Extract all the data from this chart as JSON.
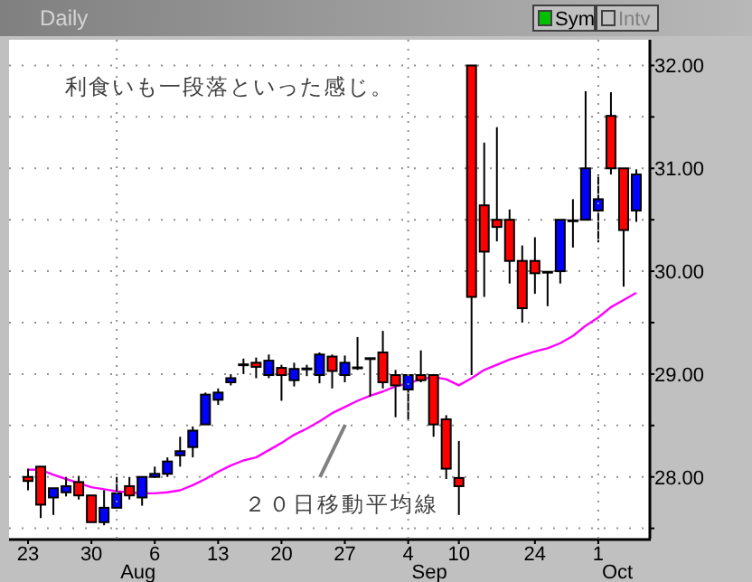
{
  "chart_data": {
    "type": "candlestick",
    "title": "Daily",
    "categories": [
      "23",
      null,
      null,
      null,
      null,
      "30",
      null,
      null,
      null,
      null,
      "6",
      null,
      null,
      null,
      null,
      "13",
      null,
      null,
      null,
      null,
      "20",
      null,
      null,
      null,
      null,
      "27",
      null,
      null,
      null,
      null,
      "4",
      null,
      null,
      null,
      "10",
      null,
      null,
      null,
      null,
      null,
      "24",
      null,
      null,
      null,
      null,
      "1",
      null,
      null,
      null
    ],
    "ohlc": [
      [
        28.0,
        28.08,
        27.87,
        27.96
      ],
      [
        28.1,
        28.1,
        27.6,
        27.73
      ],
      [
        27.8,
        27.89,
        27.63,
        27.89
      ],
      [
        27.85,
        28.0,
        27.81,
        27.91
      ],
      [
        27.95,
        28.01,
        27.78,
        27.82
      ],
      [
        27.82,
        27.82,
        27.56,
        27.56
      ],
      [
        27.56,
        27.87,
        27.53,
        27.7
      ],
      [
        27.7,
        28.0,
        27.7,
        27.84
      ],
      [
        27.91,
        28.0,
        27.78,
        27.82
      ],
      [
        27.8,
        28.0,
        27.72,
        28.0
      ],
      [
        28.0,
        28.1,
        27.99,
        28.03
      ],
      [
        28.03,
        28.19,
        28.0,
        28.15
      ],
      [
        28.21,
        28.39,
        28.1,
        28.25
      ],
      [
        28.29,
        28.49,
        28.19,
        28.45
      ],
      [
        28.51,
        28.82,
        28.51,
        28.8
      ],
      [
        28.75,
        28.86,
        28.7,
        28.82
      ],
      [
        28.92,
        29.0,
        28.89,
        28.96
      ],
      [
        29.09,
        29.15,
        29.0,
        29.09
      ],
      [
        29.11,
        29.16,
        28.96,
        29.07
      ],
      [
        28.99,
        29.19,
        28.96,
        29.13
      ],
      [
        29.06,
        29.09,
        28.74,
        28.99
      ],
      [
        28.94,
        29.11,
        28.88,
        29.05
      ],
      [
        29.05,
        29.09,
        28.98,
        29.05
      ],
      [
        28.99,
        29.21,
        28.91,
        29.19
      ],
      [
        29.17,
        29.19,
        28.86,
        29.03
      ],
      [
        28.99,
        29.18,
        28.92,
        29.11
      ],
      [
        29.06,
        29.36,
        29.04,
        29.06
      ],
      [
        29.15,
        29.15,
        28.78,
        29.15
      ],
      [
        29.21,
        29.42,
        28.86,
        28.92
      ],
      [
        28.99,
        29.04,
        28.58,
        28.89
      ],
      [
        28.85,
        28.99,
        28.56,
        28.99
      ],
      [
        28.99,
        29.23,
        28.92,
        28.94
      ],
      [
        28.99,
        29.0,
        28.39,
        28.51
      ],
      [
        28.56,
        28.6,
        27.98,
        28.08
      ],
      [
        27.99,
        28.35,
        27.63,
        27.91
      ],
      [
        32.0,
        32.0,
        28.99,
        29.75
      ],
      [
        30.64,
        31.25,
        29.75,
        30.19
      ],
      [
        30.5,
        31.4,
        30.29,
        30.43
      ],
      [
        30.5,
        30.6,
        29.88,
        30.1
      ],
      [
        30.1,
        30.25,
        29.5,
        29.64
      ],
      [
        30.1,
        30.33,
        29.78,
        29.98
      ],
      [
        29.99,
        29.99,
        29.66,
        29.99
      ],
      [
        30.0,
        30.5,
        29.88,
        30.5
      ],
      [
        30.49,
        30.7,
        30.23,
        30.49
      ],
      [
        30.5,
        31.75,
        30.5,
        31.0
      ],
      [
        30.59,
        30.94,
        30.28,
        30.7
      ],
      [
        31.51,
        31.74,
        30.94,
        31.0
      ],
      [
        31.0,
        31.0,
        29.85,
        30.4
      ],
      [
        30.59,
        30.99,
        30.48,
        30.94
      ]
    ],
    "colors": [
      "#ff0000",
      "#ff0000",
      "#0000ff",
      "#0000ff",
      "#ff0000",
      "#ff0000",
      "#0000ff",
      "#0000ff",
      "#ff0000",
      "#0000ff",
      "#0000ff",
      "#0000ff",
      "#0000ff",
      "#0000ff",
      "#0000ff",
      "#0000ff",
      "#0000ff",
      "#000000",
      "#ff0000",
      "#0000ff",
      "#ff0000",
      "#0000ff",
      "#000000",
      "#0000ff",
      "#ff0000",
      "#0000ff",
      "#000000",
      "#000000",
      "#ff0000",
      "#ff0000",
      "#0000ff",
      "#ff0000",
      "#ff0000",
      "#ff0000",
      "#ff0000",
      "#ff0000",
      "#ff0000",
      "#ff0000",
      "#ff0000",
      "#ff0000",
      "#ff0000",
      "#000000",
      "#0000ff",
      "#000000",
      "#0000ff",
      "#0000ff",
      "#ff0000",
      "#ff0000",
      "#0000ff"
    ],
    "series": [
      {
        "type": "line",
        "color": "#ff00ff",
        "values": [
          28.07,
          28.07,
          28.02,
          27.98,
          27.94,
          27.9,
          27.88,
          27.86,
          27.85,
          27.84,
          27.84,
          27.85,
          27.87,
          27.92,
          27.98,
          28.05,
          28.11,
          28.16,
          28.19,
          28.26,
          28.33,
          28.41,
          28.47,
          28.54,
          28.62,
          28.68,
          28.74,
          28.79,
          28.83,
          28.88,
          28.91,
          28.95,
          28.97,
          28.95,
          28.89,
          28.96,
          29.04,
          29.09,
          29.14,
          29.18,
          29.22,
          29.25,
          29.3,
          29.37,
          29.47,
          29.55,
          29.65,
          29.72,
          29.79
        ]
      }
    ],
    "ylim": [
      27.4,
      32.25
    ],
    "yticks": [
      {
        "value": 27.5,
        "label": null
      },
      {
        "value": 28,
        "label": "28.00"
      },
      {
        "value": 28.5,
        "label": null
      },
      {
        "value": 29,
        "label": "29.00"
      },
      {
        "value": 29.5,
        "label": null
      },
      {
        "value": 30,
        "label": "30.00"
      },
      {
        "value": 30.5,
        "label": null
      },
      {
        "value": 31,
        "label": "31.00"
      },
      {
        "value": 31.5,
        "label": null
      },
      {
        "value": 32,
        "label": "32.00"
      }
    ],
    "grid": true,
    "annotations": [
      "利食いも一段落といった感じ。",
      "２０日移動平均線",
      "Aug",
      "Sep",
      "Oct",
      "Sym",
      "Intv"
    ]
  }
}
